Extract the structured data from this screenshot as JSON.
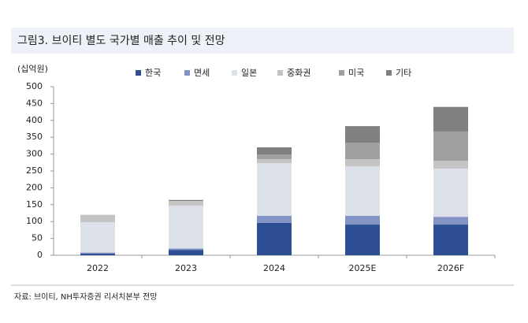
{
  "chart_data": {
    "type": "stacked-bar",
    "title": "그림3. 브이티 별도 국가별 매출 추이 및 전망",
    "y_label": "(십억원)",
    "source": "자료: 브이티, NH투자증권 리서치본부 전망",
    "categories": [
      "2022",
      "2023",
      "2024",
      "2025E",
      "2026F"
    ],
    "series": [
      {
        "name": "한국",
        "color": "#2e4e93",
        "values": [
          5,
          16,
          96,
          91,
          91
        ]
      },
      {
        "name": "면세",
        "color": "#8393c4",
        "values": [
          3,
          4,
          21,
          26,
          23
        ]
      },
      {
        "name": "일본",
        "color": "#dde1ea",
        "values": [
          90,
          127,
          156,
          147,
          143
        ]
      },
      {
        "name": "중화권",
        "color": "#c4c4c4",
        "values": [
          22,
          14,
          12,
          21,
          23
        ]
      },
      {
        "name": "미국",
        "color": "#a0a0a0",
        "values": [
          0,
          0,
          14,
          49,
          87
        ]
      },
      {
        "name": "기타",
        "color": "#808080",
        "values": [
          0,
          3,
          21,
          49,
          73
        ]
      }
    ],
    "ylim": [
      0,
      500
    ],
    "yticks": [
      0,
      50,
      100,
      150,
      200,
      250,
      300,
      350,
      400,
      450,
      500
    ],
    "grid": false
  }
}
